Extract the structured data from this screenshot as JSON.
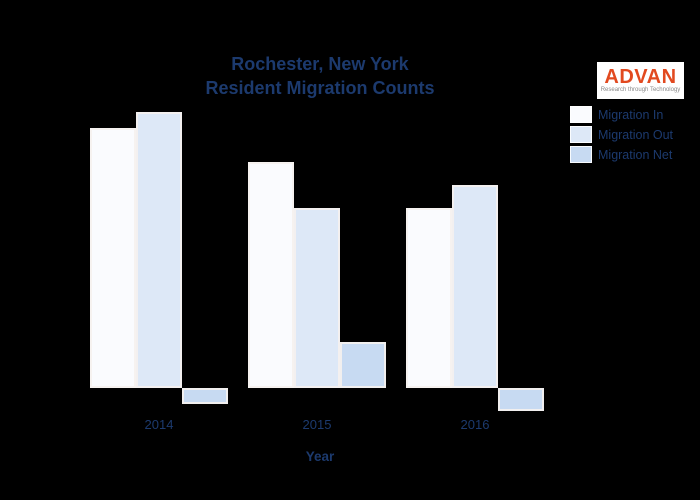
{
  "header": {
    "title_line1": "Rochester, New York",
    "title_line2": "Resident Migration Counts"
  },
  "logo": {
    "name": "ADVAN",
    "tagline": "Research through Technology",
    "text_color": "#e2491f",
    "background_color": "#ffffff",
    "tagline_color": "#8a8a8a"
  },
  "axis": {
    "x_title": "Year"
  },
  "colors": {
    "background": "#000000",
    "title_text": "#1c3a6e",
    "bar_border": "#f5f1ee"
  },
  "chart_data": {
    "type": "bar",
    "title": "Rochester, New York Resident Migration Counts",
    "categories": [
      "2014",
      "2015",
      "2016"
    ],
    "series": [
      {
        "name": "Migration In",
        "color": "#fafbfe",
        "values": [
          260,
          226,
          180
        ]
      },
      {
        "name": "Migration Out",
        "color": "#dde8f7",
        "values": [
          276,
          180,
          203
        ]
      },
      {
        "name": "Migration Net",
        "color": "#c7daf2",
        "values": [
          -16,
          46,
          -23
        ]
      }
    ],
    "xlabel": "Year",
    "ylabel": "",
    "y_axis_visible": false,
    "value_units": "relative (no y-axis tick labels visible in image)",
    "ylim": [
      -40,
      290
    ],
    "grid": false,
    "legend_position": "upper right"
  }
}
